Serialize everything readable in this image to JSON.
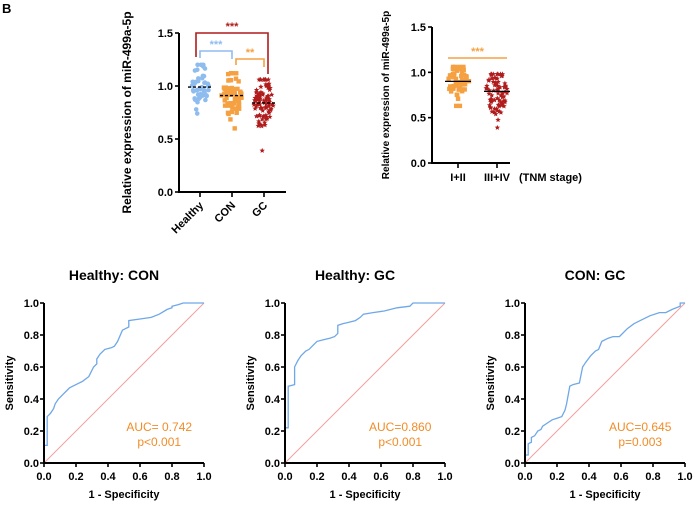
{
  "panel_label": "B",
  "chart_data": [
    {
      "id": "scatter-groups",
      "type": "scatter",
      "title": "",
      "ylabel": "Relative expression of miR-499a-5p",
      "xlabel": "",
      "ylim": [
        0,
        1.5
      ],
      "yticks": [
        "0.0",
        "0.5",
        "1.0",
        "1.5"
      ],
      "categories": [
        "Healthy",
        "CON",
        "GC"
      ],
      "colors": [
        "#8fbcef",
        "#f5a142",
        "#b01c1c"
      ],
      "markers": [
        "circle",
        "square",
        "star"
      ],
      "medians": [
        0.99,
        0.91,
        0.84
      ],
      "ranges": [
        [
          0.74,
          1.2
        ],
        [
          0.6,
          1.12
        ],
        [
          0.39,
          1.06
        ]
      ],
      "counts": [
        50,
        60,
        90
      ],
      "significance": [
        {
          "from": "Healthy",
          "to": "GC",
          "label": "***",
          "color": "#b01c1c"
        },
        {
          "from": "Healthy",
          "to": "CON",
          "label": "***",
          "color": "#8fbcef"
        },
        {
          "from": "CON",
          "to": "GC",
          "label": "**",
          "color": "#f5a142"
        }
      ]
    },
    {
      "id": "scatter-tnm",
      "type": "scatter",
      "title": "",
      "ylabel": "Relative expression of miR-499a-5p",
      "xlabel": "(TNM stage)",
      "ylim": [
        0,
        1.5
      ],
      "yticks": [
        "0.0",
        "0.5",
        "1.0",
        "1.5"
      ],
      "categories": [
        "I+II",
        "III+IV"
      ],
      "colors": [
        "#f5a142",
        "#b01c1c"
      ],
      "markers": [
        "square",
        "star"
      ],
      "medians": [
        0.9,
        0.79
      ],
      "ranges": [
        [
          0.63,
          1.06
        ],
        [
          0.39,
          0.98
        ]
      ],
      "counts": [
        55,
        75
      ],
      "significance": [
        {
          "from": "I+II",
          "to": "III+IV",
          "label": "***",
          "color": "#f5a142"
        }
      ]
    },
    {
      "id": "roc-healthy-con",
      "type": "line",
      "title": "Healthy: CON",
      "xlabel": "1 - Specificity",
      "ylabel": "Sensitivity",
      "xlim": [
        0,
        1
      ],
      "ylim": [
        0,
        1
      ],
      "xticks": [
        "0.0",
        "0.2",
        "0.4",
        "0.6",
        "0.8",
        "1.0"
      ],
      "yticks": [
        "0.0",
        "0.2",
        "0.4",
        "0.6",
        "0.8",
        "1.0"
      ],
      "annotation": [
        "AUC= 0.742",
        "p<0.001"
      ],
      "series": [
        {
          "name": "ROC",
          "color": "#6fa8e8",
          "x": [
            0,
            0,
            0.02,
            0.02,
            0.04,
            0.06,
            0.07,
            0.09,
            0.12,
            0.14,
            0.16,
            0.2,
            0.24,
            0.28,
            0.31,
            0.33,
            0.33,
            0.35,
            0.38,
            0.42,
            0.44,
            0.46,
            0.49,
            0.51,
            0.53,
            0.53,
            0.6,
            0.67,
            0.72,
            0.77,
            0.8,
            0.8,
            0.84,
            0.87,
            0.93,
            1.0
          ],
          "y": [
            0,
            0.11,
            0.11,
            0.29,
            0.31,
            0.34,
            0.37,
            0.4,
            0.43,
            0.45,
            0.47,
            0.49,
            0.51,
            0.54,
            0.6,
            0.62,
            0.65,
            0.68,
            0.71,
            0.72,
            0.73,
            0.76,
            0.83,
            0.84,
            0.85,
            0.89,
            0.9,
            0.91,
            0.93,
            0.96,
            0.97,
            0.98,
            0.99,
            1.0,
            1.0,
            1.0
          ]
        },
        {
          "name": "Reference",
          "color": "#f0a0a0",
          "x": [
            0,
            1
          ],
          "y": [
            0,
            1
          ]
        }
      ]
    },
    {
      "id": "roc-healthy-gc",
      "type": "line",
      "title": "Healthy: GC",
      "xlabel": "1 - Specificity",
      "ylabel": "Sensitivity",
      "xlim": [
        0,
        1
      ],
      "ylim": [
        0,
        1
      ],
      "xticks": [
        "0.0",
        "0.2",
        "0.4",
        "0.6",
        "0.8",
        "1.0"
      ],
      "yticks": [
        "0.0",
        "0.2",
        "0.4",
        "0.6",
        "0.8",
        "1.0"
      ],
      "annotation": [
        "AUC=0.860",
        "p<0.001"
      ],
      "series": [
        {
          "name": "ROC",
          "color": "#6fa8e8",
          "x": [
            0,
            0,
            0.02,
            0.02,
            0.06,
            0.06,
            0.08,
            0.1,
            0.13,
            0.15,
            0.18,
            0.2,
            0.24,
            0.28,
            0.31,
            0.33,
            0.33,
            0.36,
            0.4,
            0.44,
            0.47,
            0.49,
            0.55,
            0.62,
            0.7,
            0.78,
            0.8,
            0.9,
            1.0
          ],
          "y": [
            0,
            0.22,
            0.22,
            0.48,
            0.49,
            0.6,
            0.64,
            0.67,
            0.7,
            0.71,
            0.74,
            0.76,
            0.77,
            0.78,
            0.79,
            0.81,
            0.86,
            0.87,
            0.88,
            0.89,
            0.91,
            0.93,
            0.94,
            0.95,
            0.97,
            0.98,
            1.0,
            1.0,
            1.0
          ]
        },
        {
          "name": "Reference",
          "color": "#f0a0a0",
          "x": [
            0,
            1
          ],
          "y": [
            0,
            1
          ]
        }
      ]
    },
    {
      "id": "roc-con-gc",
      "type": "line",
      "title": "CON: GC",
      "xlabel": "1 - Specificity",
      "ylabel": "Sensitivity",
      "xlim": [
        0,
        1
      ],
      "ylim": [
        0,
        1
      ],
      "xticks": [
        "0.0",
        "0.2",
        "0.4",
        "0.6",
        "0.8",
        "1.0"
      ],
      "yticks": [
        "0.0",
        "0.2",
        "0.4",
        "0.6",
        "0.8",
        "1.0"
      ],
      "annotation": [
        "AUC=0.645",
        "p=0.003"
      ],
      "series": [
        {
          "name": "ROC",
          "color": "#6fa8e8",
          "x": [
            0,
            0,
            0.02,
            0.02,
            0.04,
            0.04,
            0.06,
            0.08,
            0.1,
            0.11,
            0.14,
            0.17,
            0.2,
            0.23,
            0.25,
            0.26,
            0.28,
            0.3,
            0.34,
            0.36,
            0.38,
            0.41,
            0.44,
            0.46,
            0.48,
            0.52,
            0.55,
            0.59,
            0.6,
            0.64,
            0.68,
            0.72,
            0.78,
            0.84,
            0.88,
            0.92,
            0.97,
            0.97,
            1.0
          ],
          "y": [
            0,
            0.05,
            0.05,
            0.12,
            0.13,
            0.16,
            0.17,
            0.2,
            0.21,
            0.23,
            0.25,
            0.27,
            0.28,
            0.29,
            0.33,
            0.37,
            0.48,
            0.49,
            0.5,
            0.6,
            0.63,
            0.67,
            0.7,
            0.71,
            0.76,
            0.78,
            0.79,
            0.79,
            0.8,
            0.84,
            0.87,
            0.89,
            0.92,
            0.94,
            0.94,
            0.96,
            0.98,
            1.0,
            1.0
          ]
        },
        {
          "name": "Reference",
          "color": "#f0a0a0",
          "x": [
            0,
            1
          ],
          "y": [
            0,
            1
          ]
        }
      ]
    }
  ]
}
